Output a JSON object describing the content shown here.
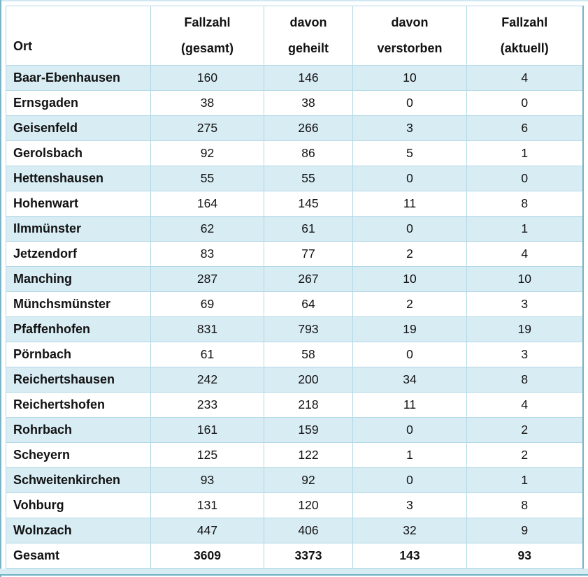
{
  "colors": {
    "row_shade": "#d8ecf4",
    "cell_border": "#b3d9e6",
    "accent_teal": "#6fb1c3",
    "top_line": "#cfe8f1",
    "text": "#121212"
  },
  "table": {
    "headers": [
      {
        "line1": "Ort",
        "line2": ""
      },
      {
        "line1": "Fallzahl",
        "line2": "(gesamt)"
      },
      {
        "line1": "davon",
        "line2": "geheilt"
      },
      {
        "line1": "davon",
        "line2": "verstorben"
      },
      {
        "line1": "Fallzahl",
        "line2": "(aktuell)"
      }
    ],
    "rows": [
      {
        "ort": "Baar-Ebenhausen",
        "values": [
          "160",
          "146",
          "10",
          "4"
        ]
      },
      {
        "ort": "Ernsgaden",
        "values": [
          "38",
          "38",
          "0",
          "0"
        ]
      },
      {
        "ort": "Geisenfeld",
        "values": [
          "275",
          "266",
          "3",
          "6"
        ]
      },
      {
        "ort": "Gerolsbach",
        "values": [
          "92",
          "86",
          "5",
          "1"
        ]
      },
      {
        "ort": "Hettenshausen",
        "values": [
          "55",
          "55",
          "0",
          "0"
        ]
      },
      {
        "ort": "Hohenwart",
        "values": [
          "164",
          "145",
          "11",
          "8"
        ]
      },
      {
        "ort": "Ilmmünster",
        "values": [
          "62",
          "61",
          "0",
          "1"
        ]
      },
      {
        "ort": "Jetzendorf",
        "values": [
          "83",
          "77",
          "2",
          "4"
        ]
      },
      {
        "ort": "Manching",
        "values": [
          "287",
          "267",
          "10",
          "10"
        ]
      },
      {
        "ort": "Münchsmünster",
        "values": [
          "69",
          "64",
          "2",
          "3"
        ]
      },
      {
        "ort": "Pfaffenhofen",
        "values": [
          "831",
          "793",
          "19",
          "19"
        ]
      },
      {
        "ort": "Pörnbach",
        "values": [
          "61",
          "58",
          "0",
          "3"
        ]
      },
      {
        "ort": "Reichertshausen",
        "values": [
          "242",
          "200",
          "34",
          "8"
        ]
      },
      {
        "ort": "Reichertshofen",
        "values": [
          "233",
          "218",
          "11",
          "4"
        ]
      },
      {
        "ort": "Rohrbach",
        "values": [
          "161",
          "159",
          "0",
          "2"
        ]
      },
      {
        "ort": "Scheyern",
        "values": [
          "125",
          "122",
          "1",
          "2"
        ]
      },
      {
        "ort": "Schweitenkirchen",
        "values": [
          "93",
          "92",
          "0",
          "1"
        ]
      },
      {
        "ort": "Vohburg",
        "values": [
          "131",
          "120",
          "3",
          "8"
        ]
      },
      {
        "ort": "Wolnzach",
        "values": [
          "447",
          "406",
          "32",
          "9"
        ]
      }
    ],
    "total": {
      "label": "Gesamt",
      "values": [
        "3609",
        "3373",
        "143",
        "93"
      ]
    }
  }
}
